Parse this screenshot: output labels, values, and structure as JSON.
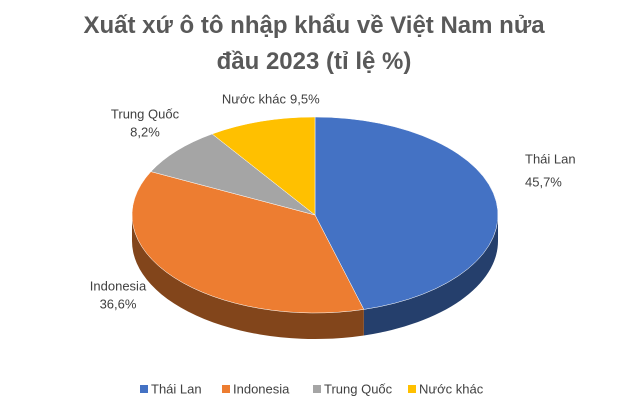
{
  "chart_data": {
    "type": "pie",
    "title": "Xuất xứ ô tô nhập khẩu về Việt Nam nửa đầu 2023 (tỉ lệ %)",
    "categories": [
      "Thái Lan",
      "Indonesia",
      "Trung Quốc",
      "Nước khác"
    ],
    "values": [
      45.7,
      36.6,
      8.2,
      9.5
    ],
    "value_labels": [
      "45,7%",
      "36,6%",
      "8,2%",
      "9,5%"
    ],
    "colors": [
      "#4472c4",
      "#ed7d31",
      "#a5a5a5",
      "#ffc000"
    ],
    "legend": "bottom"
  }
}
